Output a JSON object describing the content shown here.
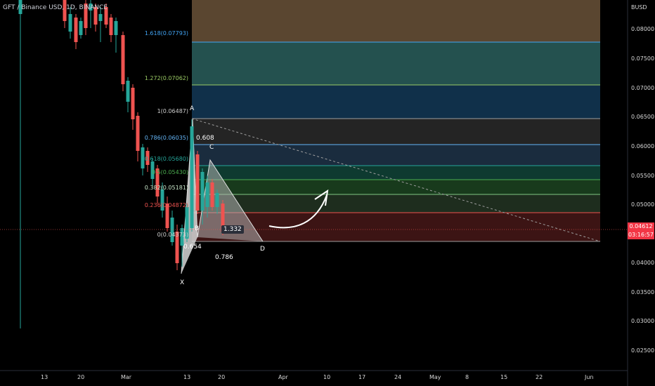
{
  "ticker_label": "GFT / Binance USD, 1D, BINANCE",
  "currency": "BUSD",
  "y_axis_ticks": [
    "0.08000",
    "0.07500",
    "0.07000",
    "0.06500",
    "0.06000",
    "0.05500",
    "0.05000",
    "0.04500",
    "0.04000",
    "0.03500",
    "0.03000",
    "0.02500"
  ],
  "x_axis_ticks": [
    "13",
    "20",
    "Mar",
    "13",
    "20",
    "Apr",
    "10",
    "17",
    "24",
    "May",
    "8",
    "15",
    "22",
    "Jun"
  ],
  "current_price": "0.04612",
  "countdown": "03:16:57",
  "fib_levels": [
    {
      "label": "1.618(0.07793)",
      "color": "#42a5f5"
    },
    {
      "label": "1.272(0.07062)",
      "color": "#9ccc65"
    },
    {
      "label": "1(0.06487)",
      "color": "#cfcfcf"
    },
    {
      "label": "0.786(0.06035)",
      "color": "#64b5f6"
    },
    {
      "label": "0.618(0.05680)",
      "color": "#26a69a"
    },
    {
      "label": "0.5(0.05430)",
      "color": "#4caf50"
    },
    {
      "label": "0.382(0.05181)",
      "color": "#c8e6c9"
    },
    {
      "label": "0.236(0.04872)",
      "color": "#ef5350"
    },
    {
      "label": "0(0.04373)",
      "color": "#cfcfcf"
    }
  ],
  "harmonic_points": {
    "x": "X",
    "a": "A",
    "b": "B",
    "c": "C",
    "d": "D"
  },
  "harmonic_ratios": {
    "xab": "0.654",
    "abc": "0.608",
    "bcd": "1.332",
    "xad": "0.786"
  },
  "colors": {
    "up": "#26a69a",
    "down": "#ef5350",
    "price_tag": "#f23645"
  }
}
